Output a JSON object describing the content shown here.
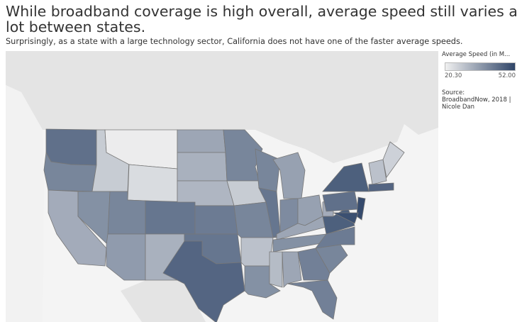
{
  "title": "While broadband coverage is high overall, average speed still varies a lot between states.",
  "subtitle": "Surprisingly, as a state with a large technology sector, California does not have one of the faster average speeds.",
  "legend": {
    "title": "Average Speed (in M...",
    "min_label": "20.30",
    "max_label": "52.00",
    "min": 20.3,
    "max": 52.0,
    "color_low": "#f0f0f0",
    "color_high": "#2f4568"
  },
  "source": {
    "label": "Source:",
    "text": "BroadbandNow, 2018 | Nicole Dan"
  },
  "states": [
    {
      "id": "WA",
      "speed": 44
    },
    {
      "id": "OR",
      "speed": 40
    },
    {
      "id": "CA",
      "speed": 33
    },
    {
      "id": "ID",
      "speed": 27
    },
    {
      "id": "NV",
      "speed": 38
    },
    {
      "id": "MT",
      "speed": 21
    },
    {
      "id": "WY",
      "speed": 24
    },
    {
      "id": "UT",
      "speed": 40
    },
    {
      "id": "AZ",
      "speed": 36
    },
    {
      "id": "CO",
      "speed": 43
    },
    {
      "id": "NM",
      "speed": 32
    },
    {
      "id": "ND",
      "speed": 34
    },
    {
      "id": "SD",
      "speed": 32
    },
    {
      "id": "NE",
      "speed": 31
    },
    {
      "id": "KS",
      "speed": 42
    },
    {
      "id": "OK",
      "speed": 43
    },
    {
      "id": "TX",
      "speed": 46
    },
    {
      "id": "MN",
      "speed": 40
    },
    {
      "id": "IA",
      "speed": 27
    },
    {
      "id": "MO",
      "speed": 40
    },
    {
      "id": "AR",
      "speed": 29
    },
    {
      "id": "LA",
      "speed": 38
    },
    {
      "id": "WI",
      "speed": 40
    },
    {
      "id": "IL",
      "speed": 43
    },
    {
      "id": "MI",
      "speed": 35
    },
    {
      "id": "IN",
      "speed": 39
    },
    {
      "id": "OH",
      "speed": 35
    },
    {
      "id": "KY",
      "speed": 34
    },
    {
      "id": "TN",
      "speed": 38
    },
    {
      "id": "MS",
      "speed": 30
    },
    {
      "id": "AL",
      "speed": 34
    },
    {
      "id": "GA",
      "speed": 41
    },
    {
      "id": "FL",
      "speed": 41
    },
    {
      "id": "SC",
      "speed": 40
    },
    {
      "id": "NC",
      "speed": 42
    },
    {
      "id": "VA",
      "speed": 47
    },
    {
      "id": "WV",
      "speed": 33
    },
    {
      "id": "PA",
      "speed": 44
    },
    {
      "id": "NY",
      "speed": 47
    },
    {
      "id": "NJ",
      "speed": 51
    },
    {
      "id": "MD",
      "speed": 50
    },
    {
      "id": "ME",
      "speed": 26
    },
    {
      "id": "NH",
      "speed": 29
    },
    {
      "id": "MA",
      "speed": 46
    }
  ]
}
